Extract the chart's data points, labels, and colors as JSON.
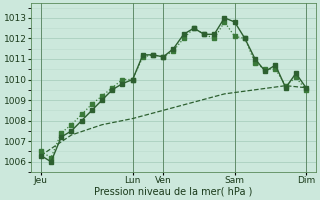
{
  "bg_color": "#cce8dc",
  "grid_color_major": "#aacfbf",
  "grid_color_minor": "#bbdacc",
  "line_color_dark": "#2d6030",
  "line_color_mid": "#3a7a3a",
  "xlabel": "Pression niveau de la mer( hPa )",
  "ylim": [
    1005.5,
    1013.7
  ],
  "yticks": [
    1006,
    1007,
    1008,
    1009,
    1010,
    1011,
    1012,
    1013
  ],
  "xlim": [
    0,
    28
  ],
  "xtick_positions": [
    1,
    10,
    13,
    20,
    27
  ],
  "xtick_labels": [
    "Jeu",
    "Lun",
    "Ven",
    "Sam",
    "Dim"
  ],
  "vline_positions": [
    1,
    10,
    13,
    20,
    27
  ],
  "series1_x": [
    1,
    2,
    3,
    4,
    5,
    6,
    7,
    8,
    9,
    10,
    11,
    12,
    13,
    14,
    15,
    16,
    17,
    18,
    19,
    20,
    21,
    22,
    23,
    24,
    25,
    26,
    27
  ],
  "series1_y": [
    1006.3,
    1006.0,
    1007.2,
    1007.5,
    1008.0,
    1008.5,
    1009.0,
    1009.5,
    1009.8,
    1010.0,
    1011.2,
    1011.2,
    1011.1,
    1011.5,
    1012.2,
    1012.5,
    1012.2,
    1012.2,
    1013.0,
    1012.8,
    1012.0,
    1011.0,
    1010.4,
    1010.7,
    1009.6,
    1010.3,
    1009.6
  ],
  "series2_x": [
    1,
    2,
    3,
    4,
    5,
    6,
    7,
    8,
    9,
    10,
    11,
    12,
    13,
    14,
    15,
    16,
    17,
    18,
    19,
    20,
    21,
    22,
    23,
    24,
    25,
    26,
    27
  ],
  "series2_y": [
    1006.5,
    1006.2,
    1007.4,
    1007.8,
    1008.3,
    1008.8,
    1009.2,
    1009.6,
    1010.0,
    1010.0,
    1011.1,
    1011.2,
    1011.1,
    1011.4,
    1012.0,
    1012.5,
    1012.2,
    1012.0,
    1012.8,
    1012.1,
    1012.0,
    1010.8,
    1010.5,
    1010.5,
    1009.7,
    1010.1,
    1009.5
  ],
  "series3_x": [
    1,
    4,
    7,
    10,
    13,
    16,
    19,
    22,
    25,
    27
  ],
  "series3_y": [
    1006.3,
    1007.3,
    1007.8,
    1008.1,
    1008.5,
    1008.9,
    1009.3,
    1009.5,
    1009.7,
    1009.6
  ]
}
